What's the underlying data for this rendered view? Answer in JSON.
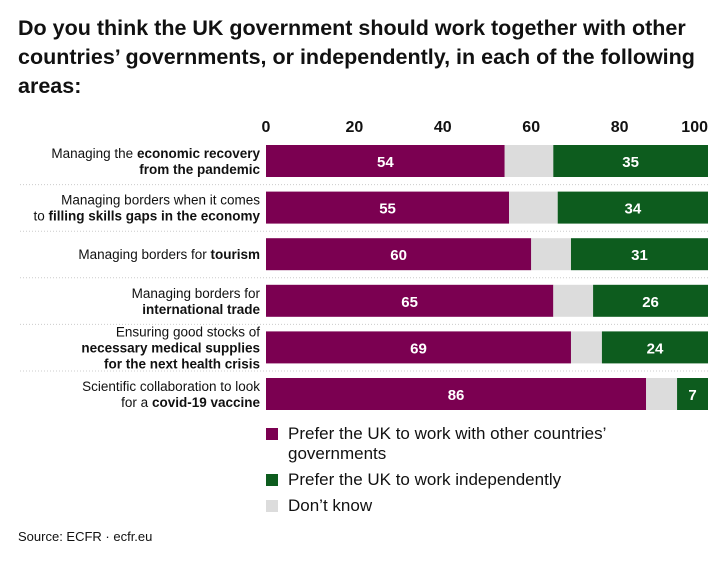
{
  "title": "Do you think the UK government should work together with other countries’ governments, or independently, in each of the following areas:",
  "source": "Source:  ECFR · ecfr.eu",
  "colors": {
    "together": "#7b0051",
    "dont_know": "#dcdcdc",
    "independently": "#0d5c1e"
  },
  "legend": {
    "together": "Prefer the UK to work with other countries’ governments",
    "independently": "Prefer the UK to work independently",
    "dont_know": "Don’t know"
  },
  "chart_data": {
    "type": "bar",
    "orientation": "horizontal",
    "stacked": true,
    "xlim": [
      0,
      100
    ],
    "xticks": [
      "0",
      "20",
      "40",
      "60",
      "80",
      "100"
    ],
    "categories": [
      [
        "Managing the ",
        "economic recovery",
        "",
        "from the pandemic",
        ""
      ],
      [
        "Managing borders when it comes",
        "",
        "to ",
        "filling skills gaps in the economy",
        ""
      ],
      [
        "Managing borders for ",
        "tourism",
        ""
      ],
      [
        "Managing borders for",
        "",
        "",
        "international trade",
        ""
      ],
      [
        "Ensuring good stocks of",
        "",
        "",
        "necessary medical supplies",
        "",
        "for the next health crisis",
        ""
      ],
      [
        "Scientific collaboration to look",
        "",
        "for a ",
        "covid-19 vaccine",
        ""
      ]
    ],
    "series": [
      {
        "name": "Prefer the UK to work with other countries’ governments",
        "values": [
          54,
          55,
          60,
          65,
          69,
          86
        ]
      },
      {
        "name": "Don’t know",
        "values": [
          11,
          11,
          9,
          9,
          7,
          7
        ]
      },
      {
        "name": "Prefer the UK to work independently",
        "values": [
          35,
          34,
          31,
          26,
          24,
          7
        ]
      }
    ]
  }
}
